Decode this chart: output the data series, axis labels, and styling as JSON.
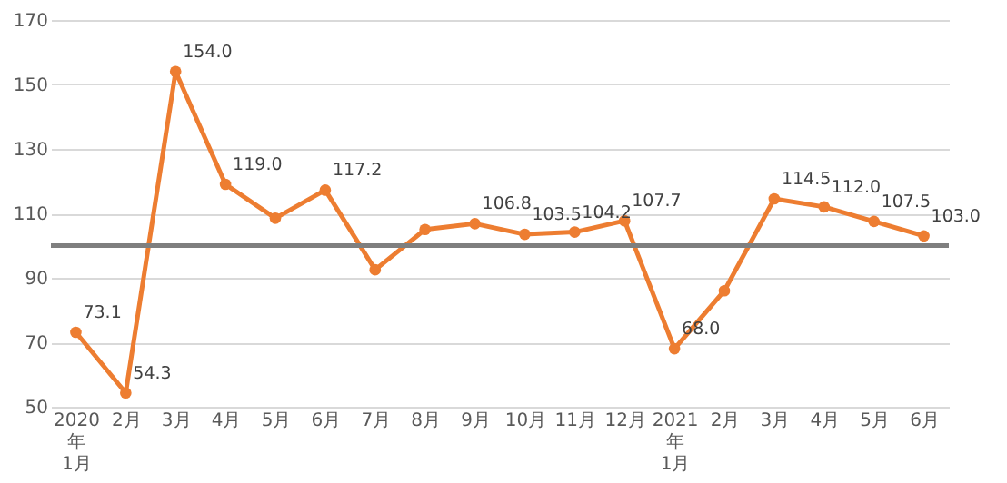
{
  "chart_data": {
    "type": "line",
    "categories": [
      "2020年1月",
      "2月",
      "3月",
      "4月",
      "5月",
      "6月",
      "7月",
      "8月",
      "9月",
      "10月",
      "11月",
      "12月",
      "2021年1月",
      "2月",
      "3月",
      "4月",
      "5月",
      "6月"
    ],
    "series": [
      {
        "color": "#ed7d31",
        "values": [
          73.1,
          54.3,
          154.0,
          119.0,
          108.5,
          117.2,
          92.5,
          105.0,
          106.8,
          103.5,
          104.2,
          107.7,
          68.0,
          86.0,
          114.5,
          112.0,
          107.5,
          103.0
        ],
        "value_labels": [
          "73.1",
          "54.3",
          "154.0",
          "119.0",
          null,
          "117.2",
          null,
          null,
          "106.8",
          "103.5",
          "104.2",
          "107.7",
          "68.0",
          null,
          "114.5",
          "112.0",
          "107.5",
          "103.0"
        ]
      }
    ],
    "ylim": [
      50,
      170
    ],
    "yticks": [
      50,
      70,
      90,
      110,
      130,
      150,
      170
    ],
    "ref_lines": [
      {
        "axis": "y",
        "value": 100,
        "color": "#7f7f7f"
      }
    ],
    "grid": "y",
    "marker": "circle",
    "line_style": "solid"
  }
}
